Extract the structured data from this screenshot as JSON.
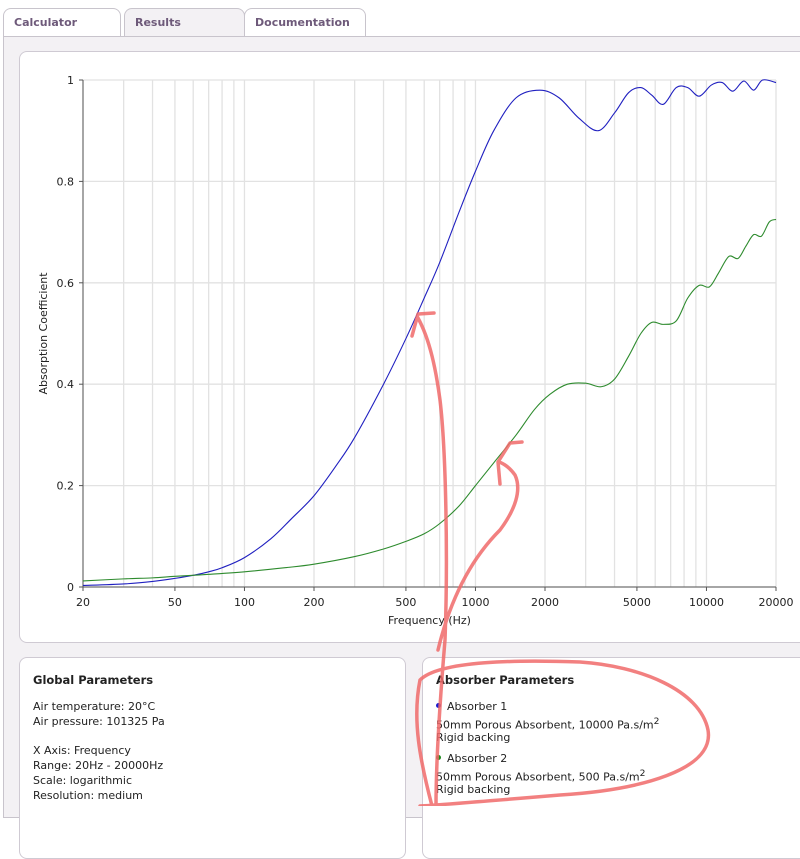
{
  "tabs": [
    {
      "label": "Calculator",
      "active": false
    },
    {
      "label": "Results",
      "active": true
    },
    {
      "label": "Documentation",
      "active": false
    }
  ],
  "chart_data": {
    "type": "line",
    "xlabel": "Frequency (Hz)",
    "ylabel": "Absorption Coefficient",
    "xscale": "log",
    "xlim": [
      20,
      20000
    ],
    "ylim": [
      0,
      1
    ],
    "xticks": [
      20,
      50,
      100,
      200,
      500,
      1000,
      2000,
      5000,
      10000,
      20000
    ],
    "xtick_labels": [
      "20",
      "50",
      "100",
      "200",
      "500",
      "1000",
      "2000",
      "5000",
      "10000",
      "20000"
    ],
    "yticks": [
      0,
      0.2,
      0.4,
      0.6,
      0.8,
      1
    ],
    "ytick_labels": [
      "0",
      "0.2",
      "0.4",
      "0.6",
      "0.8",
      "1"
    ],
    "grid": true,
    "series": [
      {
        "color": "#2020c0",
        "x": [
          20,
          30,
          40,
          50,
          60,
          70,
          80,
          100,
          130,
          160,
          200,
          250,
          300,
          400,
          500,
          600,
          700,
          850,
          1000,
          1200,
          1500,
          1900,
          2300,
          2800,
          3400,
          4000,
          4600,
          5200,
          5800,
          6500,
          7400,
          8300,
          9300,
          10500,
          11700,
          13000,
          14500,
          16000,
          17500,
          20000
        ],
        "y": [
          0.003,
          0.006,
          0.011,
          0.017,
          0.023,
          0.03,
          0.038,
          0.058,
          0.095,
          0.135,
          0.18,
          0.24,
          0.295,
          0.4,
          0.49,
          0.57,
          0.64,
          0.74,
          0.82,
          0.9,
          0.965,
          0.98,
          0.965,
          0.925,
          0.9,
          0.935,
          0.975,
          0.985,
          0.97,
          0.952,
          0.985,
          0.985,
          0.968,
          0.99,
          0.995,
          0.978,
          0.998,
          0.98,
          1.0,
          0.995
        ]
      },
      {
        "color": "#2e8b2e",
        "x": [
          20,
          30,
          40,
          50,
          70,
          100,
          150,
          200,
          300,
          400,
          500,
          600,
          700,
          850,
          1000,
          1200,
          1500,
          1800,
          2100,
          2500,
          3000,
          3500,
          4000,
          4600,
          5200,
          5800,
          6500,
          7400,
          8300,
          9300,
          10300,
          11300,
          12500,
          13700,
          14800,
          16000,
          17300,
          18700,
          20000
        ],
        "y": [
          0.012,
          0.016,
          0.018,
          0.021,
          0.025,
          0.03,
          0.038,
          0.045,
          0.06,
          0.075,
          0.09,
          0.105,
          0.125,
          0.16,
          0.2,
          0.245,
          0.3,
          0.35,
          0.38,
          0.4,
          0.402,
          0.395,
          0.41,
          0.455,
          0.5,
          0.522,
          0.518,
          0.525,
          0.57,
          0.595,
          0.592,
          0.62,
          0.652,
          0.648,
          0.672,
          0.695,
          0.692,
          0.72,
          0.725
        ]
      }
    ]
  },
  "global": {
    "title": "Global Parameters",
    "air_temperature": "Air temperature: 20°C",
    "air_pressure": "Air pressure: 101325 Pa",
    "x_axis": "X Axis: Frequency",
    "range": "Range: 20Hz - 20000Hz",
    "scale": "Scale: logarithmic",
    "resolution": "Resolution: medium"
  },
  "absorbers": {
    "title": "Absorber Parameters",
    "items": [
      {
        "name": "Absorber 1",
        "color": "#1a1acc",
        "desc": "50mm Porous Absorbent, 10000 Pa.s/m",
        "sup": "2",
        "backing": "Rigid backing"
      },
      {
        "name": "Absorber 2",
        "color": "#1e8a1e",
        "desc": "50mm Porous Absorbent, 500 Pa.s/m",
        "sup": "2",
        "backing": "Rigid backing"
      }
    ]
  },
  "annotation_color": "#f06a6a"
}
